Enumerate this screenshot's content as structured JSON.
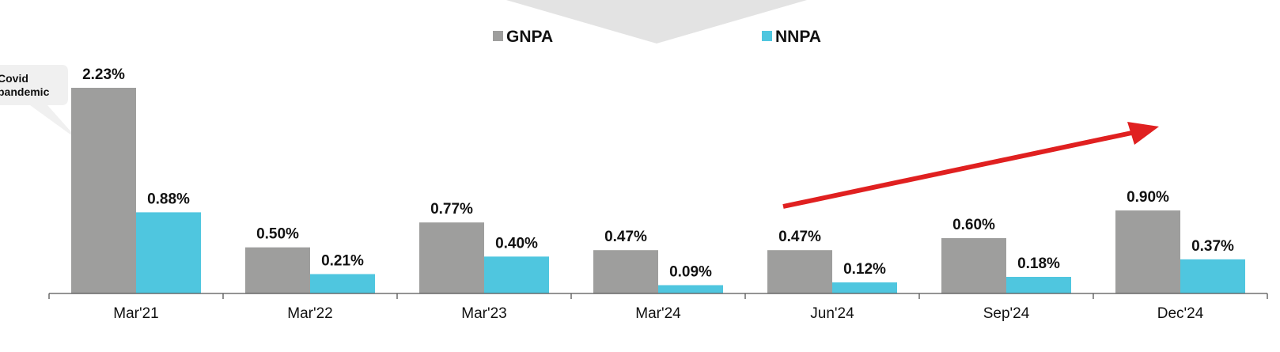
{
  "chart_data": {
    "type": "bar",
    "categories": [
      "Mar'21",
      "Mar'22",
      "Mar'23",
      "Mar'24",
      "Jun'24",
      "Sep'24",
      "Dec'24"
    ],
    "series": [
      {
        "name": "GNPA",
        "color": "#9e9e9d",
        "values": [
          2.23,
          0.5,
          0.77,
          0.47,
          0.47,
          0.6,
          0.9
        ],
        "labels": [
          "2.23%",
          "0.50%",
          "0.77%",
          "0.47%",
          "0.47%",
          "0.60%",
          "0.90%"
        ]
      },
      {
        "name": "NNPA",
        "color": "#4fc6df",
        "values": [
          0.88,
          0.21,
          0.4,
          0.09,
          0.12,
          0.18,
          0.37
        ],
        "labels": [
          "0.88%",
          "0.21%",
          "0.40%",
          "0.09%",
          "0.12%",
          "0.18%",
          "0.37%"
        ]
      }
    ],
    "ylim": [
      0,
      2.23
    ],
    "grid": false,
    "legend_position": "top-center",
    "annotation": {
      "text": [
        "Covid",
        "pandemic"
      ],
      "category": "Mar'21"
    },
    "trend_arrow": {
      "from_category": "Jun'24",
      "to_category": "Dec'24",
      "color": "#e02020"
    }
  }
}
